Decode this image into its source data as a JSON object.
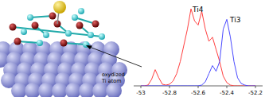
{
  "chart_data": {
    "type": "line",
    "x": [
      -53,
      -52.975,
      -52.95,
      -52.925,
      -52.9,
      -52.875,
      -52.85,
      -52.825,
      -52.8,
      -52.775,
      -52.75,
      -52.725,
      -52.7,
      -52.675,
      -52.65,
      -52.625,
      -52.6,
      -52.575,
      -52.55,
      -52.525,
      -52.5,
      -52.475,
      -52.45,
      -52.425,
      -52.4,
      -52.375,
      -52.35,
      -52.325,
      -52.3,
      -52.275,
      -52.25,
      -52.225,
      -52.2
    ],
    "series": [
      {
        "name": "Ti4",
        "color": "#ff4040",
        "line_style": "solid",
        "values": [
          0,
          0,
          0.01,
          0.08,
          0.2,
          0.1,
          0.02,
          0.01,
          0.02,
          0.06,
          0.15,
          0.3,
          0.5,
          0.7,
          0.95,
          0.8,
          0.75,
          0.92,
          0.7,
          0.55,
          0.6,
          0.45,
          0.3,
          0.12,
          0.04,
          0.01,
          0,
          0,
          0,
          0,
          0,
          0,
          0
        ]
      },
      {
        "name": "Ti3",
        "color": "#4a4aff",
        "line_style": "solid",
        "values": [
          0,
          0,
          0,
          0,
          0,
          0,
          0,
          0,
          0,
          0,
          0,
          0,
          0,
          0,
          0,
          0,
          0,
          0.01,
          0.05,
          0.15,
          0.25,
          0.18,
          0.3,
          0.7,
          0.82,
          0.6,
          0.3,
          0.1,
          0.03,
          0.01,
          0,
          0,
          0
        ]
      }
    ],
    "xlim": [
      -53.05,
      -52.15
    ],
    "xticks": [
      -53,
      -52.8,
      -52.6,
      -52.4,
      -52.2
    ],
    "ylim": [
      0,
      1
    ],
    "tick_labels": "x",
    "grid": false,
    "annotation": [
      "oxydized",
      "Ti atom"
    ]
  }
}
